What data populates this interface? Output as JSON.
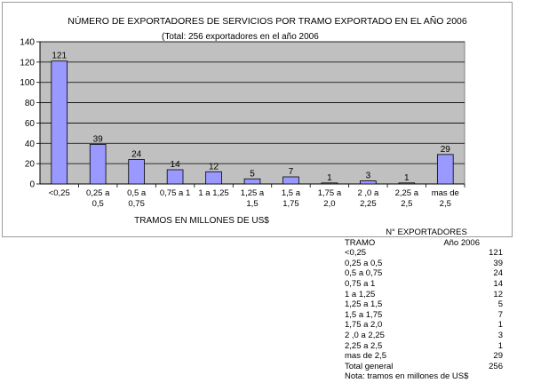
{
  "chart_data": {
    "type": "bar",
    "title": "NÚMERO DE EXPORTADORES DE SERVICIOS POR TRAMO EXPORTADO EN EL AÑO 2006",
    "subtitle": "(Total: 256 exportadores en el año 2006",
    "xlabel": "TRAMOS EN MILLONES DE US$",
    "ylabel": "",
    "ylim": [
      0,
      140
    ],
    "yticks": [
      "0",
      "20",
      "40",
      "60",
      "80",
      "100",
      "120",
      "140"
    ],
    "grid": true,
    "plot_background": "#c0c0c0",
    "bar_color": "#9999ff",
    "categories": [
      [
        "<0,25"
      ],
      [
        "0,25 a",
        "0,5"
      ],
      [
        "0,5 a",
        "0,75"
      ],
      [
        "0,75 a 1"
      ],
      [
        "1 a 1,25"
      ],
      [
        "1,25 a",
        "1,5"
      ],
      [
        "1,5 a",
        "1,75"
      ],
      [
        "1,75 a",
        "2,0"
      ],
      [
        "2 ,0 a",
        "2,25"
      ],
      [
        "2,25 a",
        "2,5"
      ],
      [
        "mas de",
        "2,5"
      ]
    ],
    "values": [
      121,
      39,
      24,
      14,
      12,
      5,
      7,
      1,
      3,
      1,
      29
    ]
  },
  "table": {
    "title": "N° EXPORTADORES",
    "col_tramo": "TRAMO",
    "col_year": "Año 2006",
    "rows": [
      {
        "tramo": "<0,25",
        "value": "121"
      },
      {
        "tramo": "0,25 a 0,5",
        "value": "39"
      },
      {
        "tramo": "0,5 a 0,75",
        "value": "24"
      },
      {
        "tramo": "0,75 a 1",
        "value": "14"
      },
      {
        "tramo": "1 a 1,25",
        "value": "12"
      },
      {
        "tramo": "1,25 a 1,5",
        "value": "5"
      },
      {
        "tramo": "1,5 a 1,75",
        "value": "7"
      },
      {
        "tramo": "1,75 a 2,0",
        "value": "1"
      },
      {
        "tramo": "2 ,0 a 2,25",
        "value": "3"
      },
      {
        "tramo": "2,25 a 2,5",
        "value": "1"
      },
      {
        "tramo": "mas de 2,5",
        "value": "29"
      }
    ],
    "total_label": "Total general",
    "total_value": "256",
    "note": "Nota: tramos en millones de US$"
  }
}
